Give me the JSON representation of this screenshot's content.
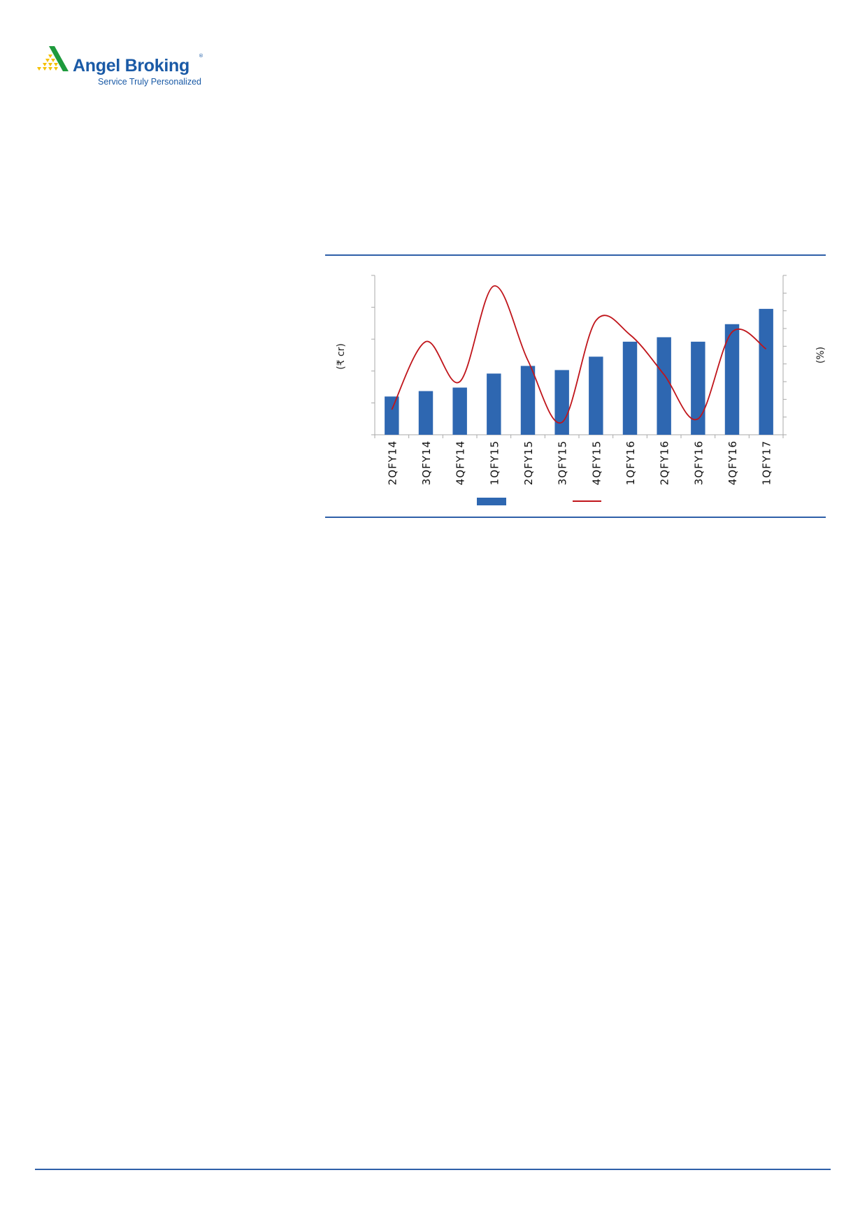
{
  "header": {
    "logo_name": "Angel Broking",
    "logo_registered": "®",
    "logo_tagline": "Service Truly Personalized",
    "brand_colors": {
      "blue": "#1a5aa6",
      "green": "#1e9a3c",
      "yellow": "#f5c000"
    }
  },
  "chart_data": {
    "type": "bar+line",
    "title": "",
    "categories": [
      "2QFY14",
      "3QFY14",
      "4QFY14",
      "1QFY15",
      "2QFY15",
      "3QFY15",
      "4QFY15",
      "1QFY16",
      "2QFY16",
      "3QFY16",
      "4QFY16",
      "1QFY17"
    ],
    "ylabel_left": "(₹ cr)",
    "ylabel_right": "(%)",
    "left_axis": {
      "ticks": 5,
      "tick_labels_shown": false,
      "ylim": [
        0,
        5
      ]
    },
    "right_axis": {
      "ticks": 9,
      "tick_labels_shown": false,
      "ylim": [
        0,
        9
      ]
    },
    "series": [
      {
        "type": "bar",
        "axis": "left",
        "color": "#2e67b1",
        "values": [
          1.2,
          1.37,
          1.48,
          1.92,
          2.16,
          2.03,
          2.45,
          2.92,
          3.06,
          2.92,
          3.47,
          3.95
        ]
      },
      {
        "type": "line",
        "axis": "right",
        "color": "#c0151b",
        "smooth": true,
        "values": [
          1.42,
          5.26,
          3.0,
          8.4,
          4.2,
          0.7,
          6.45,
          5.65,
          3.4,
          0.9,
          5.8,
          4.85
        ]
      }
    ],
    "legend": {
      "placement": "bottom",
      "entries_text_shown": false
    },
    "grid": false
  }
}
